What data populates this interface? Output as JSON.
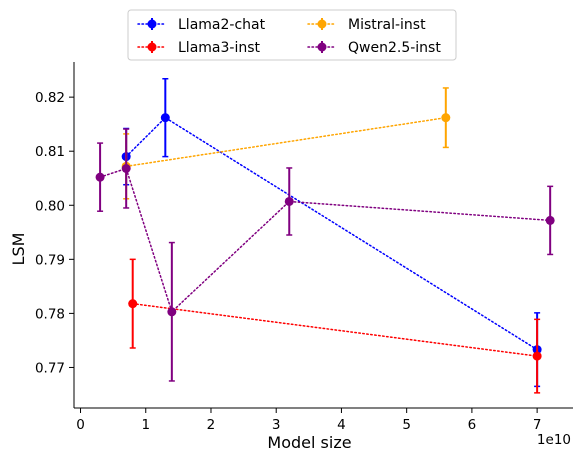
{
  "chart_data": {
    "type": "scatter",
    "title": "",
    "xlabel": "Model size",
    "ylabel": "LSM",
    "x_offset_label": "1e10",
    "xlim": [
      -0.1,
      7.55
    ],
    "ylim": [
      0.7625,
      0.8265
    ],
    "x_scale_factor": 10000000000.0,
    "xticks": [
      {
        "value": 0,
        "label": "0"
      },
      {
        "value": 1,
        "label": "1"
      },
      {
        "value": 2,
        "label": "2"
      },
      {
        "value": 3,
        "label": "3"
      },
      {
        "value": 4,
        "label": "4"
      },
      {
        "value": 5,
        "label": "5"
      },
      {
        "value": 6,
        "label": "6"
      },
      {
        "value": 7,
        "label": "7"
      }
    ],
    "yticks": [
      {
        "value": 0.77,
        "label": "0.77"
      },
      {
        "value": 0.78,
        "label": "0.78"
      },
      {
        "value": 0.79,
        "label": "0.79"
      },
      {
        "value": 0.8,
        "label": "0.80"
      },
      {
        "value": 0.81,
        "label": "0.81"
      },
      {
        "value": 0.82,
        "label": "0.82"
      }
    ],
    "grid": false,
    "legend_position": "top-center",
    "series": [
      {
        "name": "Llama2-chat",
        "color": "#0000ff",
        "points": [
          {
            "x": 0.7,
            "y": 0.809,
            "err": 0.0052
          },
          {
            "x": 1.3,
            "y": 0.8162,
            "err": 0.0072
          },
          {
            "x": 7.0,
            "y": 0.7733,
            "err": 0.0068
          }
        ]
      },
      {
        "name": "Llama3-inst",
        "color": "#ff0000",
        "points": [
          {
            "x": 0.8,
            "y": 0.7818,
            "err": 0.0082
          },
          {
            "x": 7.0,
            "y": 0.7721,
            "err": 0.0068
          }
        ]
      },
      {
        "name": "Mistral-inst",
        "color": "#ffa500",
        "points": [
          {
            "x": 0.7,
            "y": 0.8072,
            "err": 0.006
          },
          {
            "x": 5.6,
            "y": 0.8162,
            "err": 0.0055
          }
        ]
      },
      {
        "name": "Qwen2.5-inst",
        "color": "#800080",
        "points": [
          {
            "x": 0.3,
            "y": 0.8052,
            "err": 0.0063
          },
          {
            "x": 0.7,
            "y": 0.8068,
            "err": 0.0073
          },
          {
            "x": 1.4,
            "y": 0.7803,
            "err": 0.0128
          },
          {
            "x": 3.2,
            "y": 0.8007,
            "err": 0.0062
          },
          {
            "x": 7.2,
            "y": 0.7972,
            "err": 0.0063
          }
        ]
      }
    ]
  }
}
